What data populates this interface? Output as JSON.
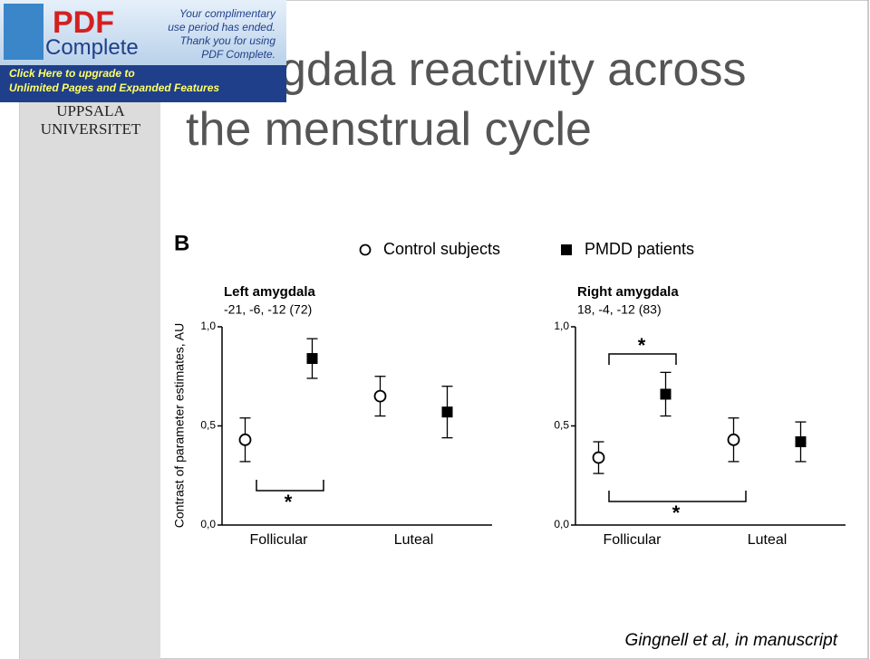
{
  "banner": {
    "logo_top": "PDF",
    "logo_bottom": "Complete",
    "notice": [
      "Your complimentary",
      "use period has ended.",
      "Thank you for using",
      "PDF Complete."
    ],
    "upgrade": [
      "Click Here to upgrade to",
      "Unlimited Pages and Expanded Features"
    ]
  },
  "slide": {
    "title": [
      "Amygdala reactivity across",
      "the menstrual cycle"
    ],
    "logo": [
      "UPPSALA",
      "UNIVERSITET"
    ],
    "panel_label": "B",
    "y_label": "Contrast of parameter estimates, AU",
    "citation": "Gingnell et al, in manuscript"
  },
  "chart_data": [
    {
      "type": "dot-errorbar",
      "title": "Left amygdala",
      "subtitle": "-21, -6, -12 (72)",
      "categories": [
        "Follicular",
        "Luteal"
      ],
      "series": [
        {
          "name": "Control subjects",
          "marker": "circle",
          "color": "#000000",
          "values": [
            0.43,
            0.65
          ],
          "errors": [
            0.11,
            0.1
          ]
        },
        {
          "name": "PMDD patients",
          "marker": "square",
          "color": "#000000",
          "values": [
            0.84,
            0.57
          ],
          "errors": [
            0.1,
            0.13
          ]
        }
      ],
      "ylim": [
        0,
        1
      ],
      "yticks": [
        {
          "value": 0,
          "label": "0,0"
        },
        {
          "value": 0.5,
          "label": "0,5"
        },
        {
          "value": 1,
          "label": "1,0"
        }
      ],
      "annotations": [
        "*"
      ]
    },
    {
      "type": "dot-errorbar",
      "title": "Right amygdala",
      "subtitle": "18, -4, -12 (83)",
      "categories": [
        "Follicular",
        "Luteal"
      ],
      "series": [
        {
          "name": "Control subjects",
          "marker": "circle",
          "color": "#000000",
          "values": [
            0.34,
            0.43
          ],
          "errors": [
            0.08,
            0.11
          ]
        },
        {
          "name": "PMDD patients",
          "marker": "square",
          "color": "#000000",
          "values": [
            0.66,
            0.42
          ],
          "errors": [
            0.11,
            0.1
          ]
        }
      ],
      "ylim": [
        0,
        1
      ],
      "yticks": [
        {
          "value": 0,
          "label": "0,0"
        },
        {
          "value": 0.5,
          "label": "0,5"
        },
        {
          "value": 1,
          "label": "1,0"
        }
      ],
      "annotations": [
        "*",
        "*"
      ]
    }
  ]
}
